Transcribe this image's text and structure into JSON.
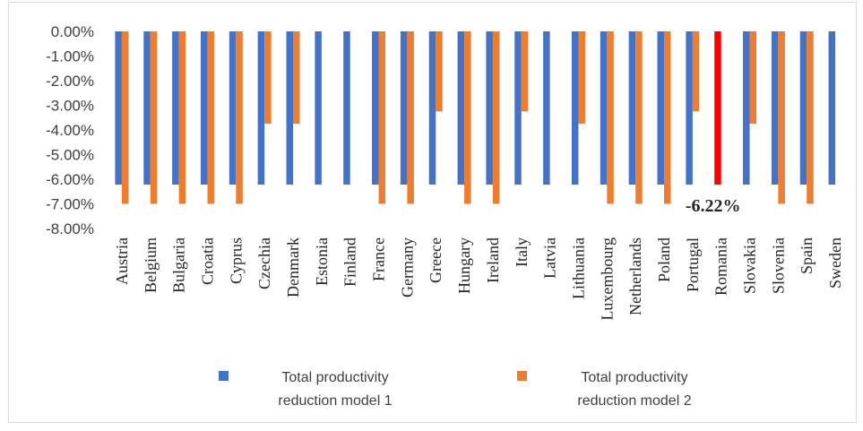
{
  "chart_data": {
    "type": "bar",
    "categories": [
      "Austria",
      "Belgium",
      "Bulgaria",
      "Croatia",
      "Cyprus",
      "Czechia",
      "Denmark",
      "Estonia",
      "Finland",
      "France",
      "Germany",
      "Greece",
      "Hungary",
      "Ireland",
      "Italy",
      "Latvia",
      "Lithuania",
      "Luxembourg",
      "Netherlands",
      "Poland",
      "Portugal",
      "Romania",
      "Slovakia",
      "Slovenia",
      "Spain",
      "Sweden"
    ],
    "series": [
      {
        "name": "Total productivity reduction model 1",
        "color": "#4472c4",
        "values": [
          -6.22,
          -6.22,
          -6.22,
          -6.22,
          -6.22,
          -6.22,
          -6.22,
          -6.22,
          -6.22,
          -6.22,
          -6.22,
          -6.22,
          -6.22,
          -6.22,
          -6.22,
          -6.22,
          -6.22,
          -6.22,
          -6.22,
          -6.22,
          -6.22,
          -6.22,
          -6.22,
          -6.22,
          -6.22,
          -6.22
        ]
      },
      {
        "name": "Total productivity reduction model 2",
        "color": "#ed7d31",
        "values": [
          -7.0,
          -7.0,
          -7.0,
          -7.0,
          -7.0,
          -3.75,
          -3.75,
          null,
          null,
          -7.0,
          -7.0,
          -3.25,
          -7.0,
          -7.0,
          -3.25,
          null,
          -3.75,
          -7.0,
          -7.0,
          -7.0,
          -3.25,
          null,
          -3.75,
          -7.0,
          -7.0,
          null
        ]
      }
    ],
    "highlight": {
      "category": "Romania",
      "series_index": 0,
      "color": "#ff0000",
      "label": "-6.22%"
    },
    "yticks": [
      "0.00%",
      "-1.00%",
      "-2.00%",
      "-3.00%",
      "-4.00%",
      "-5.00%",
      "-6.00%",
      "-7.00%",
      "-8.00%"
    ],
    "ylim": [
      -8,
      0
    ],
    "grid": false,
    "legend_position": "bottom",
    "title": "",
    "xlabel": "",
    "ylabel": ""
  },
  "legend": {
    "items": [
      {
        "line1": "Total productivity",
        "line2": "reduction model 1"
      },
      {
        "line1": "Total productivity",
        "line2": "reduction model 2"
      }
    ]
  }
}
